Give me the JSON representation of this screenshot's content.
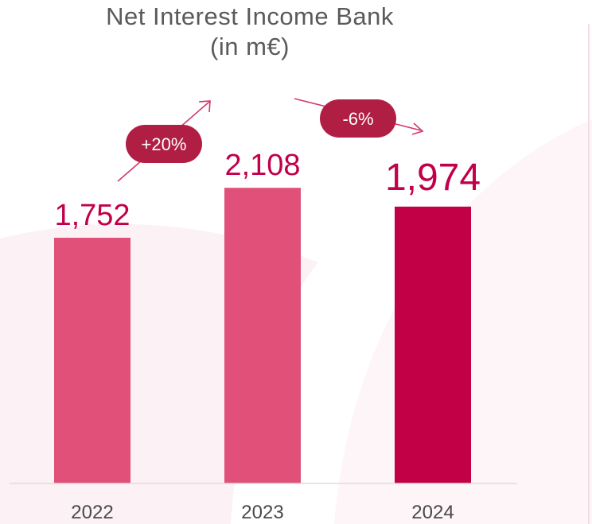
{
  "chart_data": {
    "type": "bar",
    "title": "Net Interest Income Bank",
    "subtitle": "(in m€)",
    "categories": [
      "2022",
      "2023",
      "2024"
    ],
    "values": [
      1752,
      2108,
      1974
    ],
    "data_labels": [
      "1,752",
      "2,108",
      "1,974"
    ],
    "xlabel": "",
    "ylabel": "",
    "grid": false,
    "legend": "none",
    "highlight_category": "2024",
    "annotations": [
      {
        "text": "+20%",
        "between": [
          "2022",
          "2023"
        ],
        "direction": "up"
      },
      {
        "text": "-6%",
        "between": [
          "2023",
          "2024"
        ],
        "direction": "down"
      }
    ]
  },
  "colors": {
    "bar": "#e05079",
    "bar_highlight": "#c20045",
    "value_label": "#c2004a",
    "pill": "#b01f43",
    "arrow": "#d33a6a",
    "baseline": "#dddddd"
  }
}
